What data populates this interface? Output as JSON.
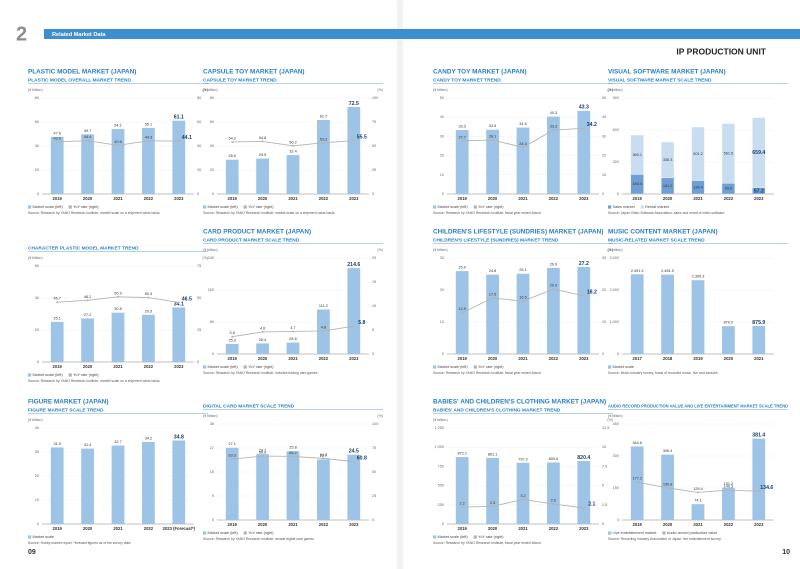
{
  "header": {
    "number": "2",
    "section": "Related Market Data",
    "unit": "IP PRODUCTION UNIT"
  },
  "pages": {
    "left": "09",
    "right": "10"
  },
  "chart_data": [
    {
      "type": "bar",
      "section": "PLASTIC MODEL MARKET (JAPAN)",
      "title": "PLASTIC MODEL OVERALL MARKET TREND",
      "y_label": "(¥ billion)",
      "y2_label": "(%)",
      "categories": [
        "2019",
        "2020",
        "2021",
        "2022",
        "2023"
      ],
      "series": [
        {
          "name": "Market scale (left)",
          "type": "bar",
          "color": "#9dc3e6",
          "values": [
            47.6,
            49.7,
            54.1,
            55.1,
            61.1
          ]
        },
        {
          "name": "YoY rate (right)",
          "type": "line",
          "axis": "y2",
          "color": "#b4b4b4",
          "values": [
            43.5,
            44.4,
            40.6,
            44.3,
            44.1
          ]
        }
      ],
      "ylim": [
        0,
        80
      ],
      "yticks": [
        0,
        20,
        40,
        60,
        80
      ],
      "y2lim": [
        0,
        80
      ],
      "y2ticks": [
        0,
        20,
        40,
        60,
        80
      ],
      "note": "Source: Research by YANO Research Institute; market scale on a shipment value basis."
    },
    {
      "type": "bar",
      "title": "CHARACTER PLASTIC MODEL MARKET TREND",
      "y_label": "(¥ billion)",
      "y2_label": "(%)",
      "categories": [
        "2019",
        "2020",
        "2021",
        "2022",
        "2023"
      ],
      "series": [
        {
          "name": "Market scale (left)",
          "type": "bar",
          "color": "#9dc3e6",
          "values": [
            25.1,
            27.2,
            30.8,
            29.5,
            34.1
          ]
        },
        {
          "name": "YoY rate (right)",
          "type": "line",
          "axis": "y2",
          "color": "#b4b4b4",
          "values": [
            46.7,
            48.2,
            50.9,
            50.3,
            46.5
          ]
        }
      ],
      "ylim": [
        0,
        60
      ],
      "yticks": [
        0,
        20,
        40,
        60
      ],
      "y2lim": [
        0,
        75
      ],
      "y2ticks": [
        0,
        25,
        50,
        75
      ],
      "note": "Source: Research by YANO Research Institute; market scale on a shipment value basis."
    },
    {
      "type": "bar",
      "section": "FIGURE MARKET (JAPAN)",
      "title": "FIGURE MARKET SCALE TREND",
      "y_label": "(¥ billion)",
      "categories": [
        "2019",
        "2020",
        "2021",
        "2022",
        "2023 (Forecast*)"
      ],
      "series": [
        {
          "name": "Market scale",
          "type": "bar",
          "color": "#9dc3e6",
          "values": [
            31.9,
            31.4,
            32.7,
            34.2,
            34.8
          ]
        }
      ],
      "ylim": [
        0,
        40
      ],
      "yticks": [
        0,
        10,
        20,
        30,
        40
      ],
      "note": "Source: Hobby market report; *forecast figures as of the survey date."
    },
    {
      "type": "bar",
      "section": "CAPSULE TOY MARKET (JAPAN)",
      "title": "CAPSULE TOY MARKET TREND",
      "y_label": "(¥ billion)",
      "y2_label": "(%)",
      "categories": [
        "2019",
        "2020",
        "2021",
        "2022",
        "2023"
      ],
      "series": [
        {
          "name": "Market scale (left)",
          "type": "bar",
          "color": "#9dc3e6",
          "values": [
            28.6,
            29.5,
            32.4,
            61.7,
            72.5
          ]
        },
        {
          "name": "YoY rate (right)",
          "type": "line",
          "axis": "y2",
          "color": "#b4b4b4",
          "values": [
            54.2,
            54.8,
            50.2,
            53.3,
            55.5
          ]
        }
      ],
      "ylim": [
        0,
        80
      ],
      "yticks": [
        0,
        20,
        40,
        60,
        80
      ],
      "y2lim": [
        0,
        100
      ],
      "y2ticks": [
        0,
        25,
        50,
        75,
        100
      ],
      "note": "Source: Research by YANO Research Institute; market scale on a shipment value basis."
    },
    {
      "type": "bar",
      "section": "CARD PRODUCT MARKET (JAPAN)",
      "title": "CARD PRODUCT MARKET SCALE TREND",
      "y_label": "(¥ billion)",
      "y2_label": "(%)",
      "categories": [
        "2019",
        "2020",
        "2021",
        "2022",
        "2023"
      ],
      "series": [
        {
          "name": "Market scale (left)",
          "type": "bar",
          "color": "#9dc3e6",
          "values": [
            25.3,
            26.4,
            28.6,
            111.2,
            214.6
          ]
        },
        {
          "name": "YoY rate (right)",
          "type": "line",
          "axis": "y2",
          "color": "#b4b4b4",
          "values": [
            3.6,
            4.6,
            4.7,
            4.8,
            5.8
          ]
        }
      ],
      "ylim": [
        0,
        240
      ],
      "yticks": [
        0,
        80,
        160,
        240
      ],
      "y2lim": [
        0,
        20
      ],
      "y2ticks": [
        0,
        5,
        10,
        15,
        20
      ],
      "note": "Source: Research by YANO Research Institute; includes trading card games."
    },
    {
      "type": "bar",
      "title": "DIGITAL CARD MARKET SCALE TREND",
      "y_label": "(¥ billion)",
      "y2_label": "(%)",
      "categories": [
        "2019",
        "2020",
        "2021",
        "2022",
        "2023"
      ],
      "series": [
        {
          "name": "Market scale (left)",
          "type": "bar",
          "color": "#9dc3e6",
          "values": [
            27.1,
            24.7,
            25.8,
            22.7,
            24.5
          ]
        },
        {
          "name": "YoY rate (right)",
          "type": "line",
          "axis": "y2",
          "color": "#b4b4b4",
          "values": [
            63.3,
            66.6,
            66.2,
            64.2,
            60.8
          ]
        }
      ],
      "ylim": [
        0,
        36
      ],
      "yticks": [
        0,
        9,
        18,
        27,
        36
      ],
      "y2lim": [
        0,
        100
      ],
      "y2ticks": [
        0,
        25,
        50,
        75,
        100
      ],
      "note": "Source: Research by YANO Research Institute; arcade digital card games."
    },
    {
      "type": "bar",
      "section": "CANDY TOY MARKET (JAPAN)",
      "title": "CANDY TOY MARKET TREND",
      "y_label": "(¥ billion)",
      "y2_label": "(%)",
      "categories": [
        "2019",
        "2020",
        "2021",
        "2022",
        "2023"
      ],
      "series": [
        {
          "name": "Market scale (left)",
          "type": "bar",
          "color": "#9dc3e6",
          "values": [
            33.3,
            33.5,
            34.6,
            40.3,
            43.3
          ]
        },
        {
          "name": "YoY rate (right)",
          "type": "line",
          "axis": "y2",
          "color": "#b4b4b4",
          "values": [
            27.7,
            28.1,
            24.3,
            33.3,
            34.2
          ]
        }
      ],
      "ylim": [
        0,
        50
      ],
      "yticks": [
        0,
        10,
        20,
        30,
        40,
        50
      ],
      "y2lim": [
        0,
        50
      ],
      "y2ticks": [
        0,
        10,
        20,
        30,
        40,
        50
      ],
      "note": "Source: Research by YANO Research Institute; fiscal year ended March."
    },
    {
      "type": "bar",
      "section": "CHILDREN'S LIFESTYLE (SUNDRIES) MARKET (JAPAN)",
      "title": "CHILDREN'S LIFESTYLE (SUNDRIES) MARKET TREND",
      "y_label": "(¥ billion)",
      "y2_label": "(%)",
      "categories": [
        "2019",
        "2020",
        "2021",
        "2022",
        "2023"
      ],
      "series": [
        {
          "name": "Market scale (left)",
          "type": "bar",
          "color": "#9dc3e6",
          "values": [
            25.9,
            24.8,
            25.1,
            26.9,
            27.2
          ]
        },
        {
          "name": "YoY rate (right)",
          "type": "line",
          "axis": "y2",
          "color": "#b4b4b4",
          "values": [
            12.9,
            17.5,
            16.5,
            20.3,
            18.2
          ]
        }
      ],
      "ylim": [
        0,
        30
      ],
      "yticks": [
        0,
        10,
        20,
        30
      ],
      "y2lim": [
        0,
        30
      ],
      "y2ticks": [
        0,
        10,
        20,
        30
      ],
      "note": "Source: Research by YANO Research Institute; fiscal year ended March."
    },
    {
      "type": "bar",
      "section": "BABIES' AND CHILDREN'S CLOTHING MARKET (JAPAN)",
      "title": "BABIES' AND CHILDREN'S CLOTHING MARKET TREND",
      "y_label": "(¥ billion)",
      "y2_label": "(%)",
      "categories": [
        "2019",
        "2020",
        "2021",
        "2022",
        "2023"
      ],
      "series": [
        {
          "name": "Market scale (left)",
          "type": "bar",
          "color": "#9dc3e6",
          "values": [
            872.1,
            861.1,
            797.2,
            800.6,
            820.4
          ]
        },
        {
          "name": "YoY rate (right)",
          "type": "line",
          "axis": "y2",
          "color": "#b4b4b4",
          "values": [
            2.2,
            2.3,
            3.2,
            2.6,
            2.1
          ]
        }
      ],
      "ylim": [
        0,
        1250
      ],
      "yticks": [
        0,
        250,
        500,
        750,
        {
          "value": 1000,
          "label": "1,000"
        },
        {
          "value": 1250,
          "label": "1,250"
        }
      ],
      "y2lim": [
        0,
        12.5
      ],
      "y2ticks": [
        0,
        2.5,
        5,
        7.5,
        10,
        12.5
      ],
      "note": "Source: Research by YANO Research Institute; fiscal year ended March."
    },
    {
      "type": "stacked_bar",
      "section": "VISUAL SOFTWARE MARKET (JAPAN)",
      "title": "VISUAL SOFTWARE MARKET SCALE TREND",
      "y_label": "(¥ billion)",
      "categories": [
        "2019",
        "2020",
        "2021",
        "2022",
        "2023"
      ],
      "series": [
        {
          "name": "Sales market",
          "type": "bar",
          "color": "#6f9fd4",
          "values": [
            183.4,
            151.2,
            126.4,
            99.6,
            57.2
          ]
        },
        {
          "name": "Rental market",
          "type": "bar",
          "color": "#c9ddf1",
          "values": [
            369.1,
            336.3,
            501.2,
            561.5,
            659.4
          ]
        }
      ],
      "ylim": [
        0,
        900
      ],
      "yticks": [
        0,
        300,
        600,
        900
      ],
      "note": "Source: Japan Video Software Association; sales and rental of video software."
    },
    {
      "type": "bar",
      "section": "MUSIC CONTENT MARKET (JAPAN)",
      "title": "MUSIC-RELATED MARKET SCALE TREND",
      "y_label": "(¥ billion)",
      "categories": [
        "2017",
        "2018",
        "2019",
        "2020",
        "2021"
      ],
      "series": [
        {
          "name": "Market scale",
          "type": "bar",
          "color": "#9dc3e6",
          "values": [
            2491.3,
            2481.5,
            2305.3,
            870.2,
            875.9
          ],
          "value_labels": [
            "2,491.3",
            "2,481.5",
            "2,305.3",
            "870.2",
            "875.9"
          ]
        }
      ],
      "ylim": [
        0,
        3000
      ],
      "yticks": [
        0,
        {
          "value": 1000,
          "label": "1,000"
        },
        {
          "value": 2000,
          "label": "2,000"
        },
        {
          "value": 3000,
          "label": "3,000"
        }
      ],
      "note": "Source: Music industry survey; totals of recorded music, live and karaoke."
    },
    {
      "type": "bar",
      "title": "AUDIO RECORD PRODUCTION VALUE AND LIVE ENTERTAINMENT MARKET SCALE TREND",
      "y_label": "(¥ billion)",
      "categories": [
        "2019",
        "2020",
        "2021",
        "2022",
        "2023"
      ],
      "series": [
        {
          "name": "Live entertainment market",
          "type": "bar",
          "color": "#9dc3e6",
          "values": [
            344.6,
            306.4,
            74.1,
            151.2,
            381.4
          ]
        },
        {
          "name": "Audio record production value",
          "type": "line",
          "color": "#b4b4b4",
          "values": [
            177.2,
            150.8,
            129.4,
            140.3,
            134.6
          ]
        }
      ],
      "ylim": [
        0,
        450
      ],
      "yticks": [
        0,
        150,
        300,
        450
      ],
      "note": "Source: Recording Industry Association of Japan; live entertainment survey."
    }
  ]
}
